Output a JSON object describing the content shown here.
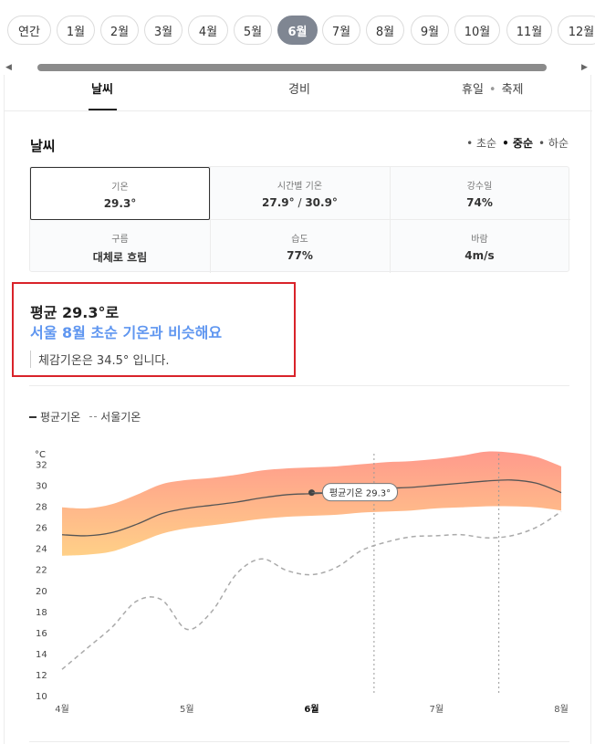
{
  "months": [
    {
      "label": "연간",
      "active": false
    },
    {
      "label": "1월",
      "active": false
    },
    {
      "label": "2월",
      "active": false
    },
    {
      "label": "3월",
      "active": false
    },
    {
      "label": "4월",
      "active": false
    },
    {
      "label": "5월",
      "active": false
    },
    {
      "label": "6월",
      "active": true
    },
    {
      "label": "7월",
      "active": false
    },
    {
      "label": "8월",
      "active": false
    },
    {
      "label": "9월",
      "active": false
    },
    {
      "label": "10월",
      "active": false
    },
    {
      "label": "11월",
      "active": false
    },
    {
      "label": "12월",
      "active": false
    }
  ],
  "tabs": {
    "weather": "날씨",
    "cost": "경비",
    "holiday": "휴일",
    "festival": "축제",
    "separator": "•"
  },
  "section": {
    "title": "날씨",
    "periods": [
      {
        "label": "• 초순",
        "active": false
      },
      {
        "label": "• 중순",
        "active": true
      },
      {
        "label": "• 하순",
        "active": false
      }
    ]
  },
  "stats": {
    "temperature": {
      "label": "기온",
      "value": "29.3°"
    },
    "hourly": {
      "label": "시간별 기온",
      "value_low": "27.9°",
      "value_sep": " / ",
      "value_high": "30.9°"
    },
    "rain": {
      "label": "강수일",
      "value": "74%"
    },
    "cloud": {
      "label": "구름",
      "value": "대체로 흐림"
    },
    "humidity": {
      "label": "습도",
      "value": "77%"
    },
    "wind": {
      "label": "바람",
      "value": "4m/s"
    }
  },
  "highlight": {
    "line1": "평균 29.3°로",
    "line2": "서울 8월 초순 기온과 비슷해요",
    "line3": "체감기온은 34.5° 입니다."
  },
  "legend": {
    "avg": "평균기온",
    "seoul": "서울기온"
  },
  "chart_data": {
    "type": "line",
    "ylabel": "°C",
    "ylim": [
      10,
      33
    ],
    "yticks": [
      "10",
      "12",
      "14",
      "16",
      "18",
      "20",
      "22",
      "24",
      "26",
      "28",
      "30",
      "32"
    ],
    "xticks": [
      {
        "label": "4월",
        "x": 0,
        "bold": false
      },
      {
        "label": "5월",
        "x": 1,
        "bold": false
      },
      {
        "label": "6월",
        "x": 2,
        "bold": true
      },
      {
        "label": "7월",
        "x": 3,
        "bold": false
      },
      {
        "label": "8월",
        "x": 4,
        "bold": false
      }
    ],
    "xlim": [
      0,
      4
    ],
    "selected_range": [
      2.5,
      3.5
    ],
    "x": [
      0,
      0.2,
      0.4,
      0.6,
      0.8,
      1.0,
      1.2,
      1.4,
      1.6,
      1.8,
      2.0,
      2.2,
      2.4,
      2.6,
      2.8,
      3.0,
      3.2,
      3.4,
      3.6,
      3.8,
      4.0
    ],
    "series": [
      {
        "name": "평균기온",
        "style": "solid",
        "color": "#555555",
        "values": [
          25.3,
          25.2,
          25.5,
          26.3,
          27.3,
          27.8,
          28.1,
          28.4,
          28.8,
          29.1,
          29.2,
          29.3,
          29.5,
          29.7,
          29.8,
          30.0,
          30.2,
          30.4,
          30.5,
          30.2,
          29.3
        ]
      },
      {
        "name": "서울기온",
        "style": "dashed",
        "color": "#aaaaaa",
        "values": [
          12.5,
          14.5,
          16.5,
          19.0,
          19.1,
          16.3,
          18.0,
          21.6,
          23.0,
          21.9,
          21.5,
          22.2,
          23.8,
          24.6,
          25.1,
          25.2,
          25.3,
          25.0,
          25.2,
          26.0,
          27.5
        ]
      },
      {
        "name": "band_low",
        "style": "band",
        "color": "#ffd088",
        "values": [
          23.3,
          23.4,
          23.7,
          24.5,
          25.4,
          25.9,
          26.2,
          26.5,
          26.8,
          27.0,
          27.1,
          27.2,
          27.4,
          27.5,
          27.6,
          27.8,
          27.9,
          28.0,
          28.0,
          27.9,
          27.6
        ]
      },
      {
        "name": "band_high",
        "style": "band",
        "color": "#ff9a8c",
        "values": [
          27.9,
          27.8,
          28.2,
          29.1,
          30.1,
          30.5,
          30.7,
          31.0,
          31.4,
          31.6,
          31.7,
          31.8,
          32.0,
          32.2,
          32.3,
          32.5,
          32.8,
          33.2,
          33.1,
          32.7,
          31.8
        ]
      }
    ],
    "annotation": {
      "label": "평균기온 29.3°",
      "x": 2.0,
      "y": 29.3
    },
    "colors": {
      "band_top": "#ff9a8c",
      "band_bottom": "#ffd088",
      "avg": "#555555",
      "seoul": "#aaaaaa"
    }
  }
}
